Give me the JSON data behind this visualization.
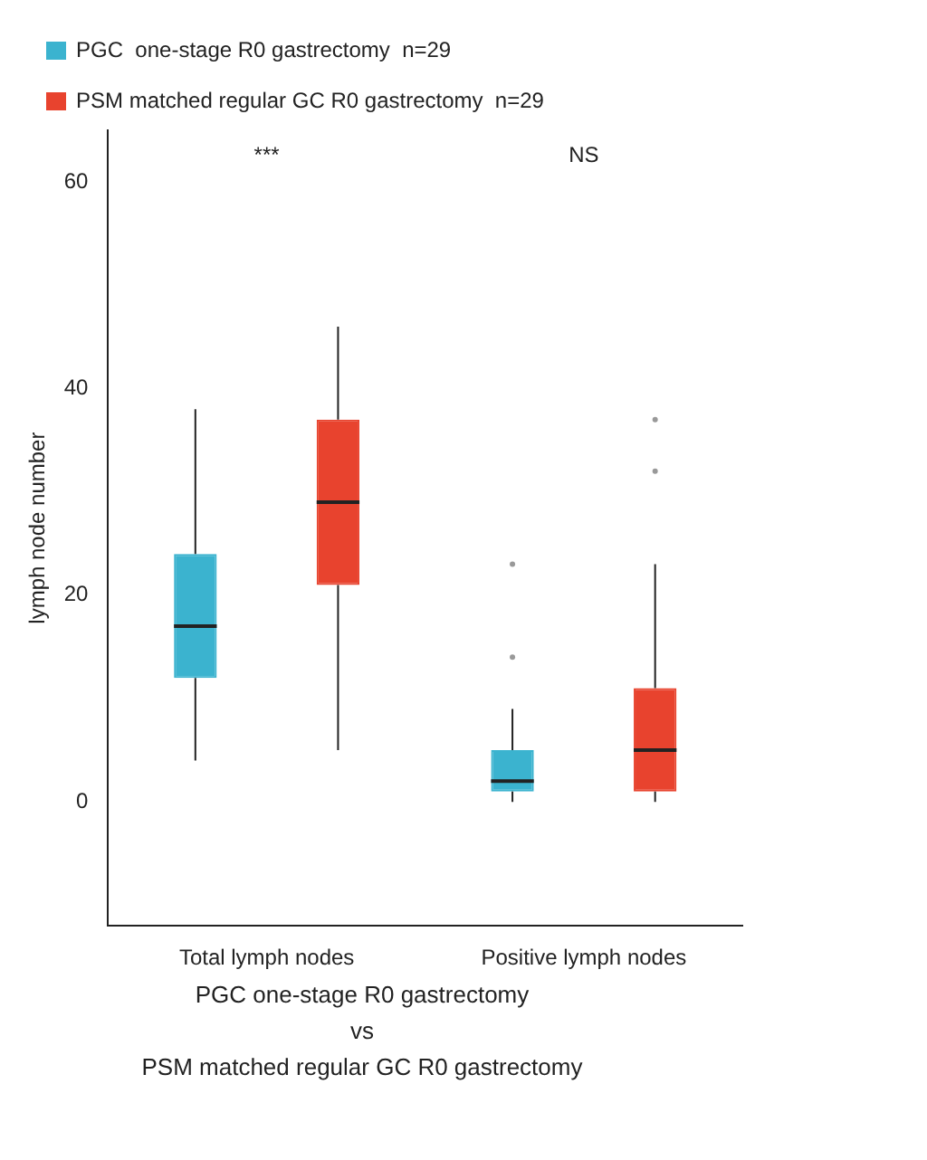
{
  "chart_data": {
    "type": "box",
    "categories": [
      "Total lymph nodes",
      "Positive lymph nodes"
    ],
    "series": [
      {
        "name": "PGC  one-stage R0 gastrectomy  n=29",
        "color": "#3bb3cf",
        "boxes": [
          {
            "low": 4,
            "q1": 12,
            "median": 17,
            "q3": 24,
            "high": 38
          },
          {
            "low": 0,
            "q1": 1,
            "median": 2,
            "q3": 5,
            "high": 9,
            "outliers": [
              14,
              23
            ]
          }
        ]
      },
      {
        "name": "PSM matched regular GC R0 gastrectomy  n=29",
        "color": "#e8432e",
        "boxes": [
          {
            "low": 5,
            "q1": 21,
            "median": 29,
            "q3": 37,
            "high": 46
          },
          {
            "low": 0,
            "q1": 1,
            "median": 5,
            "q3": 11,
            "high": 23,
            "outliers": [
              32,
              37
            ]
          }
        ]
      }
    ],
    "ylabel": "lymph node number",
    "xlabel": "PGC  one-stage R0 gastrectomy\nvs\nPSM matched regular GC R0 gastrectomy",
    "ylim": [
      -12,
      65
    ],
    "yticks": [
      0,
      20,
      40,
      60
    ],
    "annotations": [
      "***",
      "NS"
    ],
    "legend": "top left",
    "grid": false
  }
}
